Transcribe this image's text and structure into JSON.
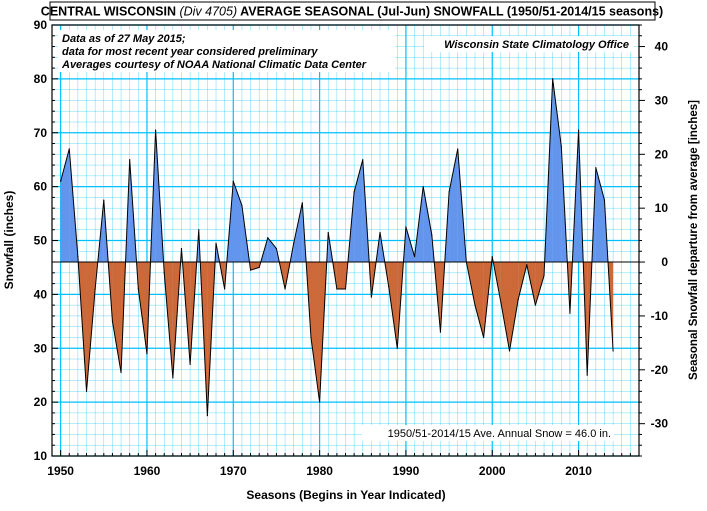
{
  "title": {
    "part1": "CENTRAL WISCONSIN",
    "part2": "(Div 4705)",
    "part3": "AVERAGE SEASONAL (Jul-Jun) SNOWFALL (1950/51-2014/15 seasons)"
  },
  "notes": [
    "Data as of 27 May 2015;",
    "data for most recent year considered preliminary",
    "Averages courtesy of NOAA National Climatic Data Center"
  ],
  "source": "Wisconsin State Climatology Office",
  "average_label": "1950/51-2014/15 Ave. Annual Snow = 46.0 in.",
  "colors": {
    "above": "#6495ed",
    "below": "#cd6839",
    "grid": "#00bfff",
    "line": "#000000"
  },
  "chart_data": {
    "type": "area",
    "title": "CENTRAL WISCONSIN (Div 4705) AVERAGE SEASONAL (Jul-Jun) SNOWFALL (1950/51-2014/15 seasons)",
    "xlabel": "Seasons (Begins in Year Indicated)",
    "ylabel": "Snowfall (inches)",
    "y2label": "Seasonal Snowfall departure from average [inches]",
    "xlim": [
      1949,
      2017
    ],
    "ylim": [
      10,
      90
    ],
    "y2lim": [
      -36,
      44
    ],
    "xticks": [
      1950,
      1960,
      1970,
      1980,
      1990,
      2000,
      2010
    ],
    "yticks": [
      10,
      20,
      30,
      40,
      50,
      60,
      70,
      80,
      90
    ],
    "y2ticks": [
      -30,
      -20,
      -10,
      0,
      10,
      20,
      30,
      40
    ],
    "average": 46.0,
    "grid": true,
    "x": [
      1950,
      1951,
      1952,
      1953,
      1954,
      1955,
      1956,
      1957,
      1958,
      1959,
      1960,
      1961,
      1962,
      1963,
      1964,
      1965,
      1966,
      1967,
      1968,
      1969,
      1970,
      1971,
      1972,
      1973,
      1974,
      1975,
      1976,
      1977,
      1978,
      1979,
      1980,
      1981,
      1982,
      1983,
      1984,
      1985,
      1986,
      1987,
      1988,
      1989,
      1990,
      1991,
      1992,
      1993,
      1994,
      1995,
      1996,
      1997,
      1998,
      1999,
      2000,
      2001,
      2002,
      2003,
      2004,
      2005,
      2006,
      2007,
      2008,
      2009,
      2010,
      2011,
      2012,
      2013,
      2014
    ],
    "values": [
      61,
      67,
      47,
      22,
      41,
      57.5,
      35,
      25.5,
      65,
      41,
      29,
      70.5,
      44,
      24.5,
      48.5,
      27,
      52,
      17.5,
      49.5,
      41,
      61,
      56.5,
      44.5,
      45,
      50.5,
      48.5,
      41,
      49.5,
      57,
      32,
      20,
      51.5,
      41,
      41,
      59,
      65,
      39.5,
      51.5,
      41.5,
      30,
      52.5,
      47,
      60,
      51,
      33,
      59,
      67,
      46,
      38,
      32,
      47,
      38.5,
      29.5,
      39,
      45.5,
      38,
      43.5,
      80,
      67.5,
      36.5,
      70.5,
      25,
      63.5,
      57.5,
      29.5
    ]
  }
}
